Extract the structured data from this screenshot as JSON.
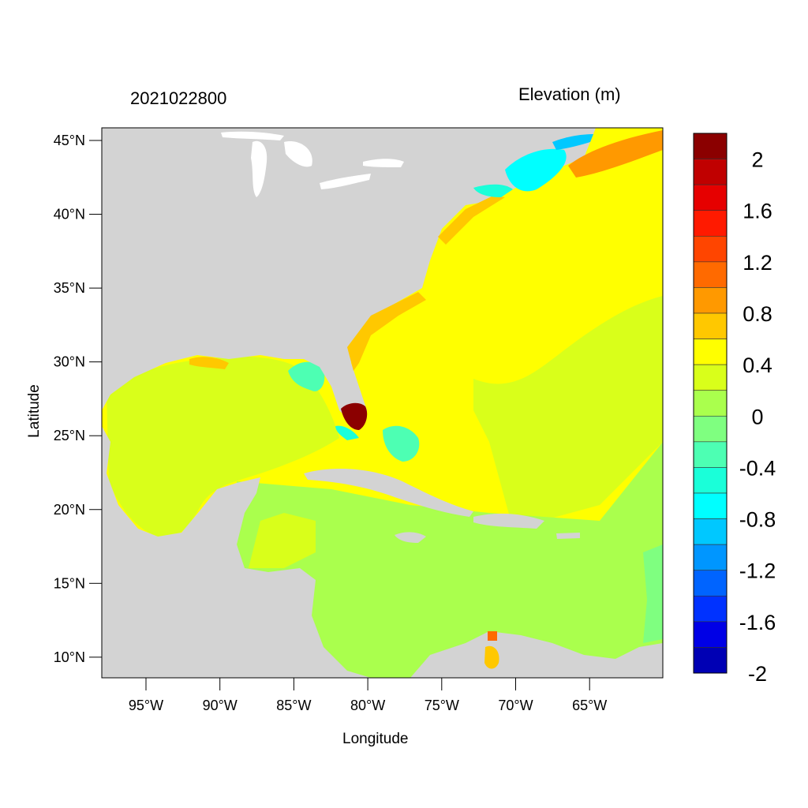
{
  "title_left": "2021022800",
  "title_right": "Elevation (m)",
  "x_axis_label": "Longitude",
  "y_axis_label": "Latitude",
  "lat_ticks": [
    {
      "value": 45,
      "label": "45°N"
    },
    {
      "value": 40,
      "label": "40°N"
    },
    {
      "value": 35,
      "label": "35°N"
    },
    {
      "value": 30,
      "label": "30°N"
    },
    {
      "value": 25,
      "label": "25°N"
    },
    {
      "value": 20,
      "label": "20°N"
    },
    {
      "value": 15,
      "label": "15°N"
    },
    {
      "value": 10,
      "label": "10°N"
    }
  ],
  "lon_ticks": [
    {
      "value": -95,
      "label": "95°W"
    },
    {
      "value": -90,
      "label": "90°W"
    },
    {
      "value": -85,
      "label": "85°W"
    },
    {
      "value": -80,
      "label": "80°W"
    },
    {
      "value": -75,
      "label": "75°W"
    },
    {
      "value": -70,
      "label": "70°W"
    },
    {
      "value": -65,
      "label": "65°W"
    }
  ],
  "colorbar": {
    "colors_top_to_bottom": [
      "#8b0000",
      "#c00000",
      "#e60000",
      "#ff1a00",
      "#ff4500",
      "#ff6a00",
      "#ff9900",
      "#ffc800",
      "#ffff00",
      "#d9ff1a",
      "#aaff4d",
      "#7fff80",
      "#4dffb3",
      "#1affd9",
      "#00ffff",
      "#00c8ff",
      "#0096ff",
      "#0064ff",
      "#0032ff",
      "#0000e6",
      "#0000b4"
    ],
    "labels": [
      "2",
      "1.6",
      "1.2",
      "0.8",
      "0.4",
      "0",
      "-0.4",
      "-0.8",
      "-1.2",
      "-1.6",
      "-2"
    ]
  },
  "colors": {
    "land": "#d3d3d3",
    "atlantic": "#ffff00",
    "gulf": "#d9ff1a",
    "caribbean": "#aaff4d"
  }
}
